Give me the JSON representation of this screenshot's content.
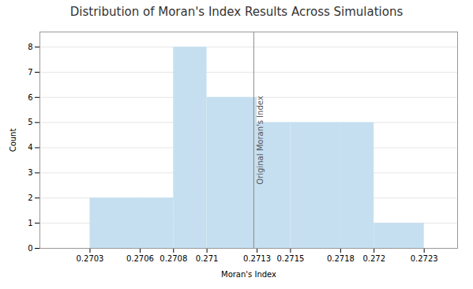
{
  "chart_data": {
    "type": "histogram",
    "title": "Distribution of Moran's Index Results Across Simulations",
    "xlabel": "Moran's Index",
    "ylabel": "Count",
    "bins": [
      0.2703,
      0.2706,
      0.2708,
      0.271,
      0.2713,
      0.2715,
      0.2718,
      0.272,
      0.2723
    ],
    "values": [
      2,
      2,
      8,
      6,
      5,
      5,
      5,
      1
    ],
    "color": "#c5dff0",
    "xlim": [
      0.27,
      0.2725
    ],
    "xticks": [
      0.2703,
      0.2706,
      0.2708,
      0.271,
      0.2713,
      0.2715,
      0.2718,
      0.272,
      0.2723
    ],
    "ylim": [
      0,
      8.6
    ],
    "yticks": [
      0,
      1,
      2,
      3,
      4,
      5,
      6,
      7,
      8
    ],
    "grid": true,
    "annotations": [
      {
        "type": "vline",
        "x": 0.27128,
        "text": "Original Moran's Index",
        "color": "#8a8a8a"
      }
    ]
  }
}
